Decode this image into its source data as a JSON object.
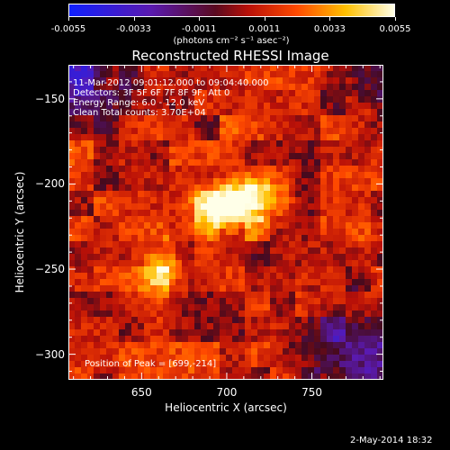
{
  "chart_data": {
    "type": "heatmap",
    "title": "Reconstructed RHESSI Image",
    "xlabel": "Heliocentric X (arcsec)",
    "ylabel": "Heliocentric Y (arcsec)",
    "xlim": [
      607,
      792
    ],
    "ylim": [
      -315,
      -130
    ],
    "x_ticks": [
      650,
      700,
      750
    ],
    "y_ticks": [
      -150,
      -200,
      -250,
      -300
    ],
    "colorbar": {
      "ticks": [
        "-0.0055",
        "-0.0033",
        "-0.0011",
        "0.0011",
        "0.0033",
        "0.0055"
      ],
      "range": [
        -0.0055,
        0.0055
      ],
      "units": "(photons cm⁻² s⁻¹ asec⁻²)",
      "colormap": "blue-purple-red-yellow-white"
    },
    "annotations": [
      "11-Mar-2012 09:01:12.000 to 09:04:40.000",
      "Detectors: 3F 5F 6F 7F 8F 9F, Att 0",
      "Energy Range: 6.0 - 12.0 keV",
      "Clean     Total counts: 3.70E+04"
    ],
    "peak_label": "Position of Peak = [699,-214]",
    "peak": [
      699,
      -214
    ],
    "sources": [
      {
        "x": 699,
        "y": -214,
        "sigma_x": 14,
        "sigma_y": 9,
        "amplitude": 0.0055
      },
      {
        "x": 717,
        "y": -207,
        "sigma_x": 11,
        "sigma_y": 8,
        "amplitude": 0.0036
      },
      {
        "x": 662,
        "y": -250,
        "sigma_x": 9,
        "sigma_y": 9,
        "amplitude": 0.0033
      }
    ],
    "background": 0.001
  },
  "footer": "2-May-2014 18:32"
}
